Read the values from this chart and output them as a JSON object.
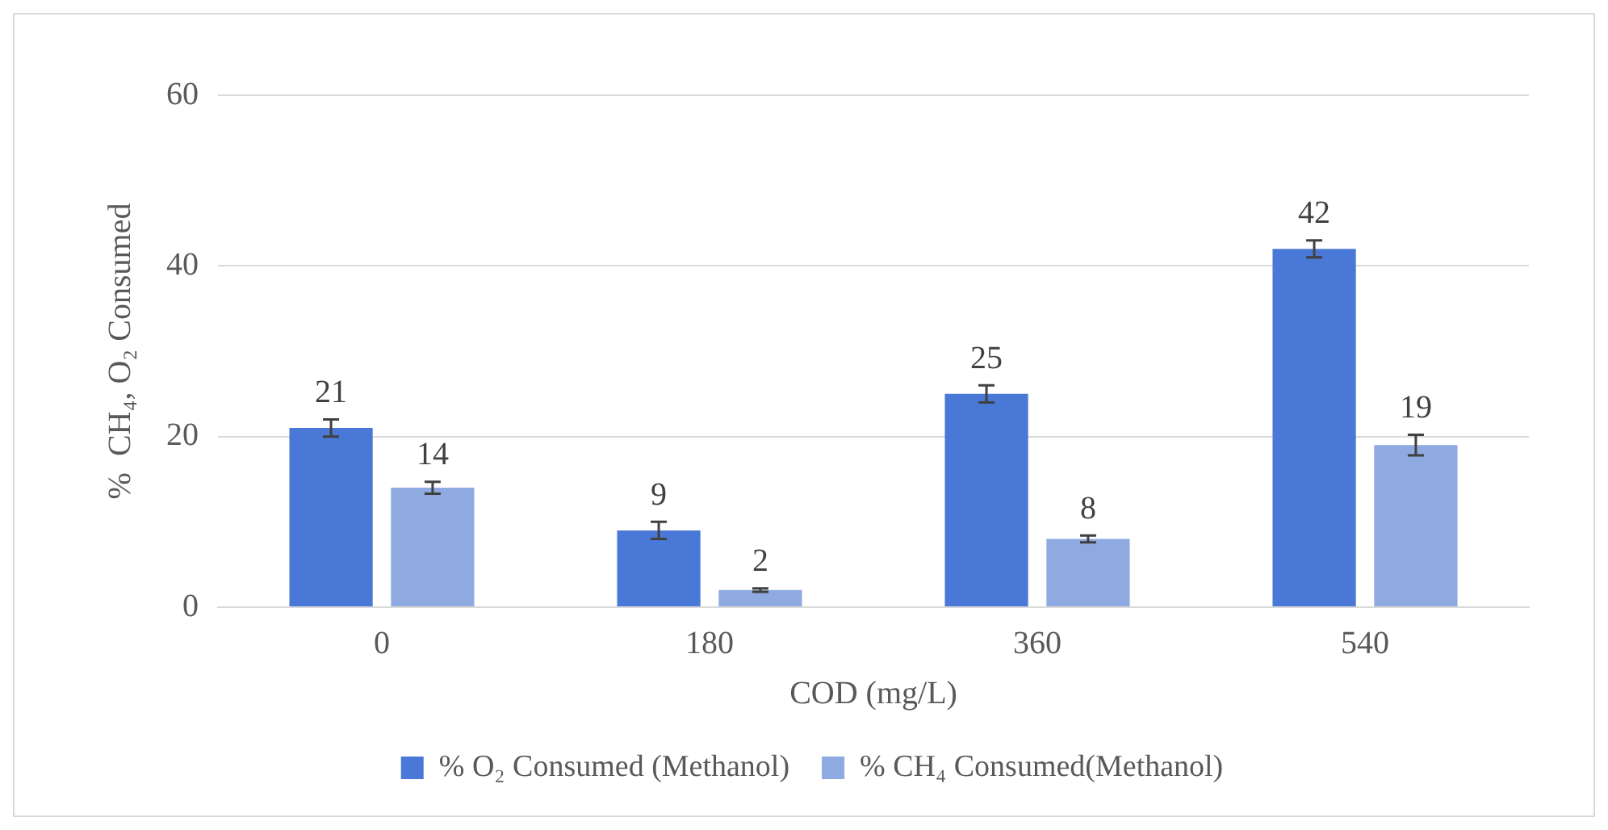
{
  "chart_data": {
    "type": "bar",
    "xlabel": "COD (mg/L)",
    "ylabel": "%  CH₄, O₂ Consumed",
    "categories": [
      "0",
      "180",
      "360",
      "540"
    ],
    "series": [
      {
        "name": "% O₂ Consumed (Methanol)",
        "color": "#4a78d6",
        "values": [
          21,
          9,
          25,
          42
        ],
        "errors": [
          1,
          1,
          1,
          1
        ]
      },
      {
        "name": "% CH₄ Consumed(Methanol)",
        "color": "#8eaae0",
        "values": [
          14,
          2,
          8,
          19
        ],
        "errors": [
          0.7,
          0.2,
          0.4,
          1.2
        ]
      }
    ],
    "ylim": [
      0,
      60
    ],
    "yticks": [
      0,
      20,
      40,
      60
    ],
    "grid": "y",
    "legend": "bottom",
    "data_labels": true
  }
}
